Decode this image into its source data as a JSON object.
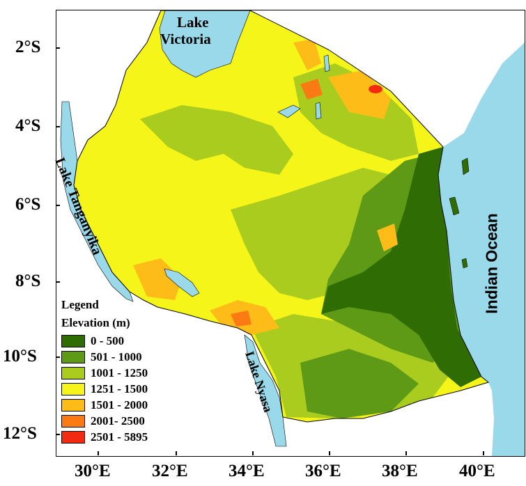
{
  "axes": {
    "latitude_labels": [
      "2°S",
      "4°S",
      "6°S",
      "8°S",
      "10°S",
      "12°S"
    ],
    "longitude_labels": [
      "30°E",
      "32°E",
      "34°E",
      "36°E",
      "38°E",
      "40°E"
    ]
  },
  "water_labels": {
    "lake_victoria_line1": "Lake",
    "lake_victoria_line2": "Victoria",
    "lake_tanganyika": "Lake Tanganyika",
    "lake_nyasa": "Lake Nyasa",
    "indian_ocean": "Indian Ocean"
  },
  "legend": {
    "title": "Legend",
    "subtitle": "Elevation (m)",
    "items": [
      {
        "label": "0 - 500",
        "color": "#2f6d04"
      },
      {
        "label": "501 - 1000",
        "color": "#5f9a17"
      },
      {
        "label": "1001 - 1250",
        "color": "#a9cc1e"
      },
      {
        "label": "1251 - 1500",
        "color": "#f5f51a"
      },
      {
        "label": "1501 - 2000",
        "color": "#fdbc17"
      },
      {
        "label": "2001- 2500",
        "color": "#fb7a14"
      },
      {
        "label": "2501 - 5895",
        "color": "#f32a12"
      }
    ]
  },
  "colors": {
    "water": "#99d9ea",
    "frame": "#000000"
  }
}
